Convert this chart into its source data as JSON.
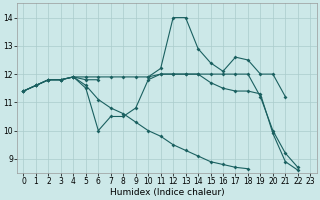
{
  "xlabel": "Humidex (Indice chaleur)",
  "bg_color": "#cce8e8",
  "grid_color": "#aacccc",
  "line_color": "#1a6060",
  "xlim": [
    -0.5,
    23.5
  ],
  "ylim": [
    8.5,
    14.5
  ],
  "xticks": [
    0,
    1,
    2,
    3,
    4,
    5,
    6,
    7,
    8,
    9,
    10,
    11,
    12,
    13,
    14,
    15,
    16,
    17,
    18,
    19,
    20,
    21,
    22,
    23
  ],
  "yticks": [
    9,
    10,
    11,
    12,
    13,
    14
  ],
  "series": [
    {
      "x": [
        0,
        1,
        2,
        3,
        4,
        5,
        6,
        7,
        8,
        9,
        10,
        11,
        12,
        13,
        14,
        15,
        16,
        17,
        18,
        19,
        20,
        21,
        22,
        23
      ],
      "y": [
        11.4,
        11.6,
        11.8,
        11.8,
        11.9,
        11.6,
        11.1,
        10.8,
        10.6,
        10.3,
        10.0,
        9.8,
        9.5,
        9.3,
        9.1,
        8.9,
        8.8,
        8.7,
        8.65,
        null,
        null,
        null,
        null,
        null
      ]
    },
    {
      "x": [
        0,
        1,
        2,
        3,
        4,
        5,
        6,
        7,
        8,
        9,
        10,
        11,
        12,
        13,
        14,
        15,
        16,
        17,
        18,
        19,
        20,
        21,
        22,
        23
      ],
      "y": [
        11.4,
        11.6,
        11.8,
        11.8,
        11.9,
        11.9,
        11.9,
        11.9,
        11.9,
        11.9,
        11.9,
        12.0,
        12.0,
        12.0,
        12.0,
        12.0,
        12.0,
        12.0,
        12.0,
        11.2,
        10.0,
        9.2,
        8.7,
        null
      ]
    },
    {
      "x": [
        0,
        1,
        2,
        3,
        4,
        5,
        6,
        7,
        8,
        9,
        10,
        11,
        12,
        13,
        14,
        15,
        16,
        17,
        18,
        19,
        20,
        21,
        22,
        23
      ],
      "y": [
        11.4,
        11.6,
        11.8,
        11.8,
        11.9,
        11.5,
        10.0,
        10.5,
        10.5,
        10.8,
        11.8,
        12.0,
        12.0,
        12.0,
        12.0,
        11.7,
        11.5,
        11.4,
        11.4,
        11.3,
        9.9,
        8.9,
        8.6,
        null
      ]
    },
    {
      "x": [
        0,
        1,
        2,
        3,
        4,
        5,
        6,
        7,
        8,
        9,
        10,
        11,
        12,
        13,
        14,
        15,
        16,
        17,
        18,
        19,
        20,
        21,
        22,
        23
      ],
      "y": [
        11.4,
        11.6,
        11.8,
        11.8,
        11.9,
        11.8,
        11.8,
        null,
        null,
        null,
        11.9,
        12.2,
        14.0,
        14.0,
        12.9,
        12.4,
        12.1,
        12.6,
        12.5,
        12.0,
        12.0,
        11.2,
        null,
        null
      ]
    }
  ]
}
